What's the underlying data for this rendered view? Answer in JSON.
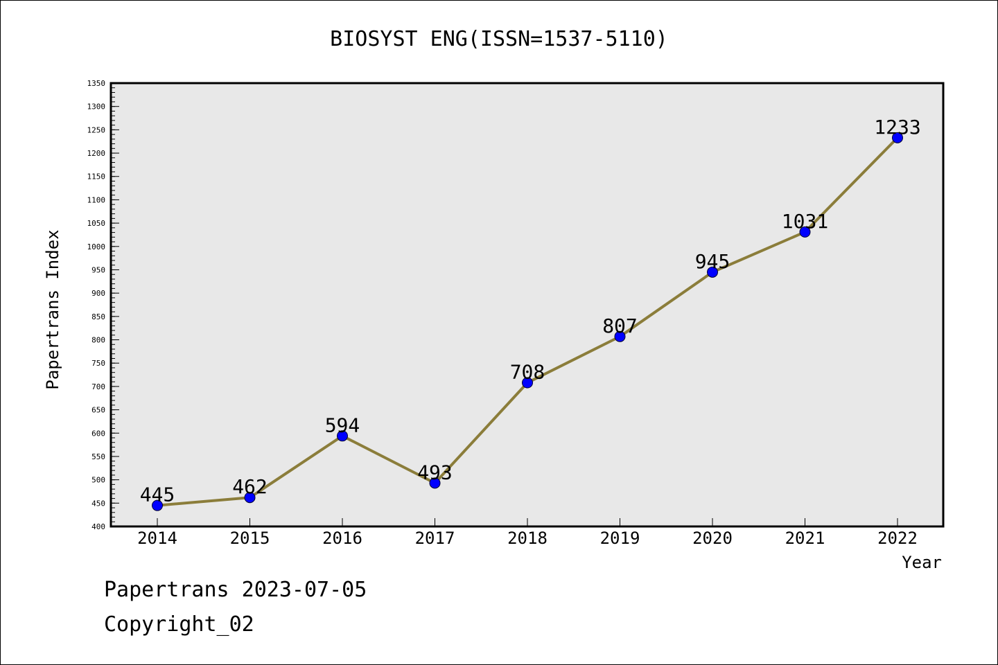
{
  "chart_data": {
    "type": "line",
    "title": "BIOSYST ENG(ISSN=1537-5110)",
    "xlabel": "Year",
    "ylabel": "Papertrans Index",
    "categories": [
      "2014",
      "2015",
      "2016",
      "2017",
      "2018",
      "2019",
      "2020",
      "2021",
      "2022"
    ],
    "series": [
      {
        "values": [
          445,
          462,
          594,
          493,
          708,
          807,
          945,
          1031,
          1233
        ]
      }
    ],
    "data_labels": [
      "445",
      "462",
      "594",
      "493",
      "708",
      "807",
      "945",
      "1031",
      "1233"
    ],
    "yticks": [
      "400",
      "450",
      "500",
      "550",
      "600",
      "650",
      "700",
      "750",
      "800",
      "850",
      "900",
      "950",
      "1000",
      "1050",
      "1100",
      "1150",
      "1200",
      "1250",
      "1300",
      "1350"
    ],
    "ylim": [
      400,
      1350
    ],
    "grid": false,
    "colors": {
      "line": "#8b7d3a",
      "marker": "#0000ff",
      "plot_background": "#e8e8e8"
    }
  },
  "footer": {
    "line1": "Papertrans 2023-07-05",
    "line2": "Copyright_02"
  }
}
